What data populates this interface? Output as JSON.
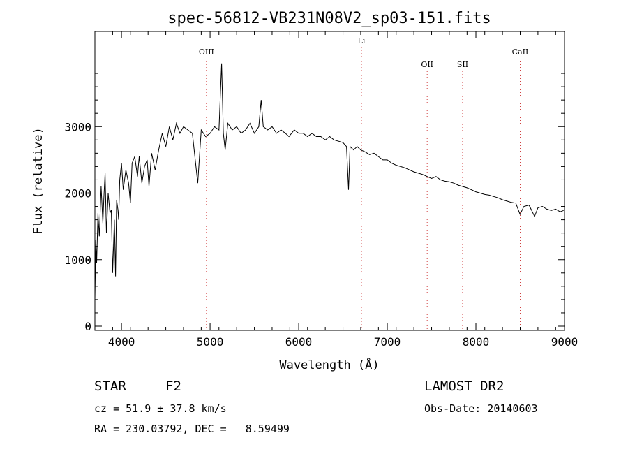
{
  "chart_data": {
    "type": "line",
    "title": "spec-56812-VB231N08V2_sp03-151.fits",
    "xlabel": "Wavelength (Å)",
    "ylabel": "Flux (relative)",
    "xlim": [
      3700,
      9000
    ],
    "ylim": [
      0,
      4000
    ],
    "x_ticks": [
      4000,
      5000,
      6000,
      7000,
      8000,
      9000
    ],
    "y_ticks": [
      0,
      1000,
      2000,
      3000
    ],
    "x_tick_labels": [
      "4000",
      "5000",
      "6000",
      "7000",
      "8000",
      "9000"
    ],
    "y_tick_labels": [
      "0",
      "1000",
      "2000",
      "3000"
    ],
    "grid": false,
    "series": [
      {
        "x": [
          3700,
          3710,
          3720,
          3735,
          3750,
          3770,
          3790,
          3800,
          3815,
          3830,
          3850,
          3870,
          3885,
          3900,
          3920,
          3933,
          3945,
          3960,
          3968,
          3980,
          4000,
          4020,
          4050,
          4080,
          4101,
          4120,
          4150,
          4180,
          4200,
          4230,
          4260,
          4290,
          4310,
          4340,
          4380,
          4420,
          4460,
          4500,
          4540,
          4580,
          4620,
          4660,
          4700,
          4750,
          4800,
          4861,
          4900,
          4950,
          5000,
          5050,
          5100,
          5130,
          5150,
          5170,
          5200,
          5250,
          5300,
          5350,
          5400,
          5450,
          5500,
          5550,
          5577,
          5600,
          5650,
          5700,
          5750,
          5800,
          5850,
          5890,
          5950,
          6000,
          6050,
          6100,
          6150,
          6200,
          6250,
          6300,
          6350,
          6400,
          6450,
          6500,
          6540,
          6563,
          6580,
          6620,
          6660,
          6700,
          6750,
          6800,
          6850,
          6900,
          6950,
          7000,
          7050,
          7100,
          7150,
          7200,
          7250,
          7300,
          7350,
          7400,
          7450,
          7500,
          7550,
          7600,
          7650,
          7700,
          7750,
          7800,
          7850,
          7900,
          7950,
          8000,
          8050,
          8100,
          8150,
          8200,
          8250,
          8300,
          8350,
          8400,
          8450,
          8498,
          8542,
          8600,
          8662,
          8700,
          8750,
          8800,
          8850,
          8900,
          8950,
          8990
        ],
        "y": [
          400,
          1300,
          950,
          1700,
          1350,
          2100,
          1550,
          1900,
          2300,
          1400,
          2000,
          1700,
          1750,
          800,
          1600,
          750,
          1900,
          1750,
          1600,
          2200,
          2450,
          2050,
          2350,
          2150,
          1850,
          2450,
          2550,
          2250,
          2550,
          2150,
          2400,
          2500,
          2100,
          2600,
          2350,
          2650,
          2900,
          2700,
          3000,
          2800,
          3050,
          2900,
          3000,
          2950,
          2900,
          2150,
          2950,
          2850,
          2900,
          3000,
          2950,
          3950,
          2900,
          2650,
          3050,
          2950,
          3000,
          2900,
          2950,
          3050,
          2900,
          3000,
          3400,
          3000,
          2950,
          3000,
          2900,
          2950,
          2900,
          2850,
          2950,
          2900,
          2900,
          2850,
          2900,
          2850,
          2850,
          2800,
          2850,
          2800,
          2780,
          2760,
          2700,
          2050,
          2700,
          2650,
          2700,
          2650,
          2620,
          2580,
          2600,
          2550,
          2500,
          2500,
          2450,
          2420,
          2400,
          2380,
          2350,
          2320,
          2300,
          2280,
          2250,
          2220,
          2250,
          2200,
          2180,
          2170,
          2150,
          2120,
          2100,
          2080,
          2050,
          2020,
          2000,
          1980,
          1970,
          1950,
          1930,
          1900,
          1880,
          1860,
          1850,
          1680,
          1800,
          1820,
          1650,
          1780,
          1800,
          1760,
          1740,
          1760,
          1720,
          1740
        ]
      }
    ],
    "emission_lines": [
      {
        "label": "OIII",
        "x": 4959
      },
      {
        "label": "Li",
        "x": 6708
      },
      {
        "label": "OII",
        "x": 7450
      },
      {
        "label": "SII",
        "x": 7850
      },
      {
        "label": "CaII",
        "x": 8500
      }
    ]
  },
  "info": {
    "object_class": "STAR",
    "subclass": "F2",
    "survey": "LAMOST DR2",
    "cz": "cz = 51.9 ± 37.8 km/s",
    "obs_date": "Obs-Date: 20140603",
    "coords": "RA = 230.03792, DEC =   8.59499"
  }
}
